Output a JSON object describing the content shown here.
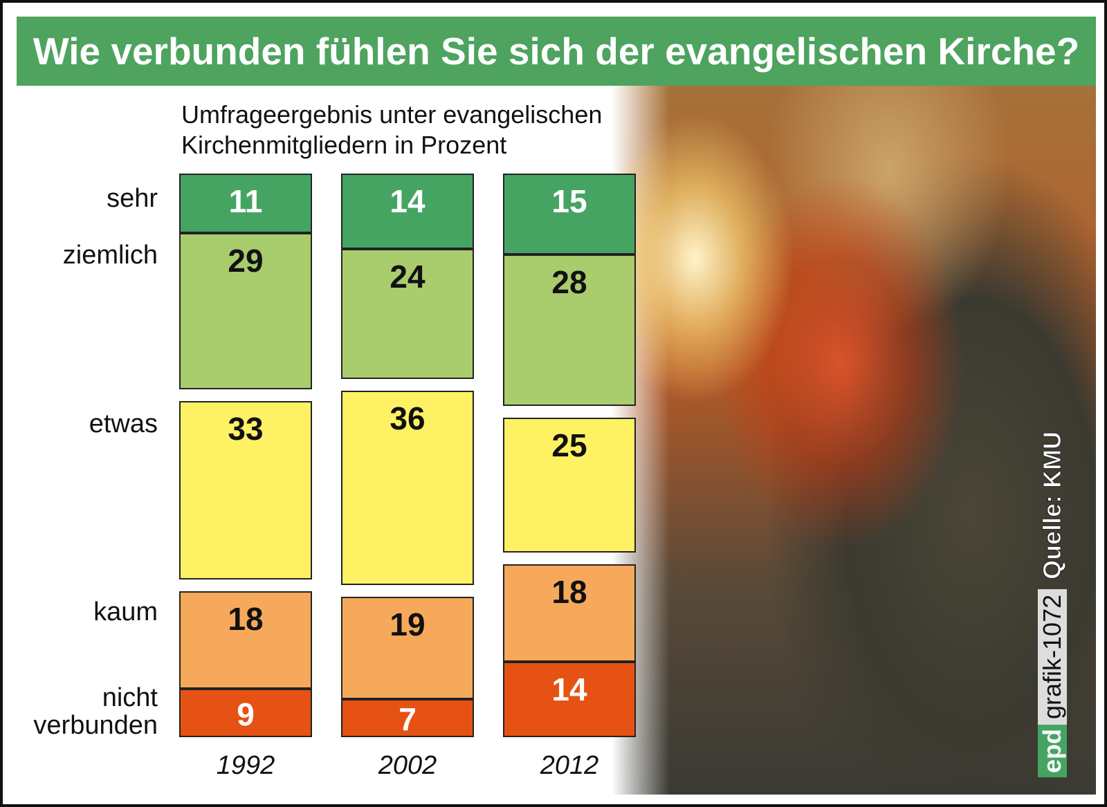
{
  "title": "Wie verbunden fühlen Sie sich der evangelischen Kirche?",
  "chart_data": {
    "type": "bar",
    "stacked": true,
    "title": "Wie verbunden fühlen Sie sich der evangelischen Kirche?",
    "subtitle_line1": "Umfrageergebnis unter evangelischen",
    "subtitle_line2": "Kirchenmitgliedern in Prozent",
    "categories": [
      "1992",
      "2002",
      "2012"
    ],
    "series": [
      {
        "name": "sehr",
        "values": [
          11,
          14,
          15
        ],
        "color": "#46a462",
        "text": "#ffffff"
      },
      {
        "name": "ziemlich",
        "values": [
          29,
          24,
          28
        ],
        "color": "#a9cc6c",
        "text": "#111111"
      },
      {
        "name": "etwas",
        "values": [
          33,
          36,
          25
        ],
        "color": "#fef164",
        "text": "#111111"
      },
      {
        "name": "kaum",
        "values": [
          18,
          19,
          18
        ],
        "color": "#f6a95a",
        "text": "#111111"
      },
      {
        "name": "nicht verbunden",
        "values": [
          9,
          7,
          14
        ],
        "color": "#e55213",
        "text": "#ffffff"
      }
    ],
    "row_labels": [
      "sehr",
      "ziemlich",
      "etwas",
      "kaum",
      "nicht",
      "verbunden"
    ]
  },
  "credit": {
    "brand": "epd",
    "code": "grafik-1072",
    "source": "Quelle: KMU"
  }
}
